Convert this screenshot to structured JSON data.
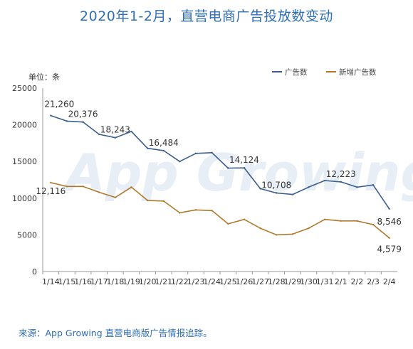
{
  "title": "2020年1-2月，直营电商广告投放数变动",
  "source_note": "来源：App Growing 直营电商版广告情报追踪。",
  "watermark": "App Growing",
  "chart_data": {
    "type": "line",
    "unit_label": "单位：条",
    "categories": [
      "1/14",
      "1/15",
      "1/16",
      "1/17",
      "1/18",
      "1/19",
      "1/20",
      "1/21",
      "1/22",
      "1/23",
      "1/24",
      "1/25",
      "1/26",
      "1/27",
      "1/28",
      "1/29",
      "1/30",
      "1/31",
      "2/1",
      "2/2",
      "2/3",
      "2/4"
    ],
    "series": [
      {
        "name": "广告数",
        "color": "#3b5e8c",
        "values": [
          21260,
          20500,
          20376,
          18700,
          18243,
          19100,
          16800,
          16484,
          15000,
          16100,
          16200,
          14100,
          14124,
          11300,
          10708,
          10500,
          11500,
          12400,
          12223,
          11500,
          11800,
          8546
        ]
      },
      {
        "name": "新增广告数",
        "color": "#b07a2e",
        "values": [
          12116,
          11600,
          11600,
          10800,
          10100,
          11500,
          9700,
          9600,
          8000,
          8400,
          8300,
          6500,
          7100,
          5900,
          5000,
          5100,
          5900,
          7100,
          6900,
          6900,
          6400,
          4579
        ]
      }
    ],
    "data_labels": [
      {
        "series": 0,
        "index": 0,
        "text": "21,260"
      },
      {
        "series": 0,
        "index": 2,
        "text": "20,376"
      },
      {
        "series": 0,
        "index": 4,
        "text": "18,243"
      },
      {
        "series": 0,
        "index": 7,
        "text": "16,484"
      },
      {
        "series": 0,
        "index": 12,
        "text": "14,124"
      },
      {
        "series": 0,
        "index": 14,
        "text": "10,708"
      },
      {
        "series": 0,
        "index": 18,
        "text": "12,223"
      },
      {
        "series": 0,
        "index": 21,
        "text": "8,546"
      },
      {
        "series": 1,
        "index": 0,
        "text": "12,116"
      },
      {
        "series": 1,
        "index": 21,
        "text": "4,579"
      }
    ],
    "y_ticks": [
      "0",
      "5000",
      "10000",
      "15000",
      "20000",
      "25000"
    ],
    "ylim": [
      0,
      25000
    ],
    "grid": false,
    "legend_position": "top-right"
  }
}
